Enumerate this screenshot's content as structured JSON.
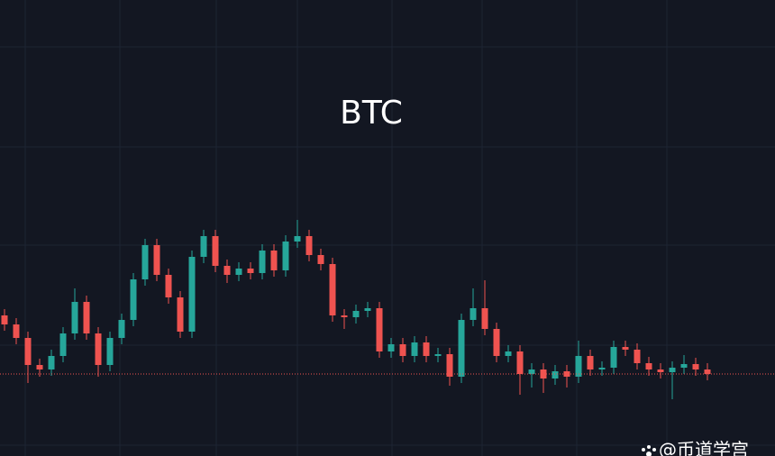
{
  "chart_data": {
    "type": "candlestick",
    "title": "BTC",
    "watermark": "@币道学宫",
    "ylim": [
      0,
      506
    ],
    "up_color": "#26a69a",
    "down_color": "#ef5350",
    "price_line": true,
    "open": [
      156,
      146,
      131,
      101,
      96,
      111,
      136,
      171,
      136,
      101,
      131,
      151,
      196,
      234,
      201,
      176,
      138,
      221,
      244,
      211,
      201,
      208,
      203,
      228,
      206,
      238,
      244,
      223,
      213,
      156,
      154,
      161,
      164,
      116,
      124,
      111,
      126,
      111,
      113,
      88,
      151,
      164,
      141,
      111,
      116,
      91,
      96,
      86,
      94,
      88,
      111,
      96,
      98,
      121,
      118,
      103,
      96,
      93,
      98,
      102,
      96
    ],
    "high": [
      163,
      153,
      138,
      108,
      118,
      143,
      186,
      178,
      143,
      138,
      158,
      203,
      241,
      241,
      208,
      183,
      228,
      251,
      251,
      218,
      215,
      215,
      235,
      235,
      245,
      262,
      251,
      230,
      220,
      163,
      168,
      171,
      171,
      131,
      131,
      133,
      133,
      120,
      120,
      158,
      186,
      195,
      148,
      123,
      123,
      103,
      103,
      101,
      101,
      128,
      118,
      105,
      128,
      128,
      125,
      110,
      103,
      105,
      112,
      109,
      103
    ],
    "low": [
      139,
      124,
      81,
      88,
      89,
      104,
      129,
      129,
      88,
      94,
      124,
      144,
      189,
      194,
      169,
      131,
      131,
      214,
      204,
      192,
      194,
      196,
      196,
      199,
      199,
      231,
      216,
      206,
      149,
      141,
      147,
      154,
      109,
      109,
      104,
      104,
      104,
      104,
      78,
      81,
      144,
      134,
      104,
      104,
      68,
      76,
      70,
      79,
      76,
      81,
      89,
      89,
      91,
      111,
      96,
      89,
      86,
      63,
      91,
      89,
      84
    ],
    "close": [
      146,
      131,
      101,
      96,
      111,
      136,
      171,
      136,
      101,
      131,
      151,
      196,
      234,
      201,
      176,
      138,
      221,
      244,
      211,
      201,
      208,
      203,
      228,
      206,
      238,
      244,
      223,
      213,
      156,
      154,
      161,
      164,
      116,
      124,
      111,
      126,
      111,
      113,
      88,
      151,
      164,
      141,
      111,
      116,
      91,
      96,
      86,
      94,
      88,
      111,
      96,
      98,
      121,
      118,
      103,
      96,
      93,
      98,
      102,
      96,
      91
    ]
  }
}
